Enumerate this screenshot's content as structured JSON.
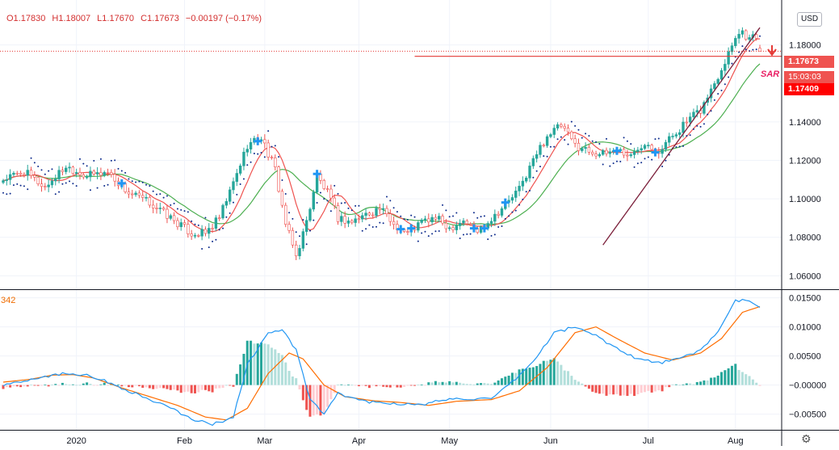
{
  "header": {
    "open_label": "O1.17830",
    "high_label": "H1.18007",
    "low_label": "L1.17670",
    "close_label": "C1.17673",
    "change_label": "−0.00197 (−0.17%)",
    "currency": "USD"
  },
  "markers": {
    "last_price": "1.17673",
    "countdown": "15:03:03",
    "level_price": "1.17409",
    "sar_label": "SAR",
    "indicator_value": "342"
  },
  "colors": {
    "up": "#26a69a",
    "down": "#ef5350",
    "ma_fast": "#ef5350",
    "ma_slow": "#4caf50",
    "sar": "#0d2b8c",
    "macd_line": "#2196f3",
    "signal_line": "#ff6d00",
    "hist_up_strong": "#26a69a",
    "hist_up_weak": "#b2dfdb",
    "hist_down_strong": "#ef5350",
    "hist_down_weak": "#ffcdd2",
    "trendline": "#7b1f3a",
    "level": "#e53935",
    "axis_text": "#131722",
    "grid": "#f0f3fa"
  },
  "icons": {
    "settings": "gear-icon"
  },
  "chart_data": [
    {
      "type": "candlestick",
      "symbol_hint": "EUR/USD daily",
      "x_ticks": [
        "2020",
        "Feb",
        "Mar",
        "Apr",
        "May",
        "Jun",
        "Jul",
        "Aug"
      ],
      "y_ticks": [
        "1.06000",
        "1.08000",
        "1.10000",
        "1.12000",
        "1.14000",
        "1.18000"
      ],
      "ylim": [
        1.053,
        1.2
      ],
      "anchors": [
        [
          0,
          1.11
        ],
        [
          6,
          1.114
        ],
        [
          12,
          1.106
        ],
        [
          18,
          1.117
        ],
        [
          24,
          1.112
        ],
        [
          30,
          1.114
        ],
        [
          36,
          1.103
        ],
        [
          42,
          1.098
        ],
        [
          48,
          1.09
        ],
        [
          54,
          1.082
        ],
        [
          58,
          1.082
        ],
        [
          62,
          1.09
        ],
        [
          66,
          1.108
        ],
        [
          70,
          1.128
        ],
        [
          74,
          1.132
        ],
        [
          78,
          1.115
        ],
        [
          81,
          1.087
        ],
        [
          84,
          1.07
        ],
        [
          87,
          1.088
        ],
        [
          90,
          1.112
        ],
        [
          93,
          1.103
        ],
        [
          96,
          1.09
        ],
        [
          100,
          1.088
        ],
        [
          104,
          1.092
        ],
        [
          108,
          1.095
        ],
        [
          112,
          1.087
        ],
        [
          116,
          1.082
        ],
        [
          120,
          1.088
        ],
        [
          124,
          1.09
        ],
        [
          128,
          1.085
        ],
        [
          132,
          1.089
        ],
        [
          136,
          1.083
        ],
        [
          140,
          1.09
        ],
        [
          144,
          1.097
        ],
        [
          148,
          1.105
        ],
        [
          152,
          1.12
        ],
        [
          156,
          1.133
        ],
        [
          160,
          1.138
        ],
        [
          164,
          1.128
        ],
        [
          168,
          1.125
        ],
        [
          172,
          1.123
        ],
        [
          176,
          1.126
        ],
        [
          180,
          1.122
        ],
        [
          184,
          1.13
        ],
        [
          188,
          1.125
        ],
        [
          192,
          1.133
        ],
        [
          196,
          1.14
        ],
        [
          200,
          1.146
        ],
        [
          204,
          1.16
        ],
        [
          207,
          1.172
        ],
        [
          210,
          1.185
        ],
        [
          212,
          1.187
        ],
        [
          214,
          1.183
        ],
        [
          216,
          1.185
        ],
        [
          217,
          1.1767
        ]
      ],
      "series": [
        {
          "name": "",
          "kind": "moving-average-fast",
          "lag": 4
        },
        {
          "name": "",
          "kind": "moving-average-slow",
          "lag": 9
        },
        {
          "name": "",
          "kind": "parabolic-sar"
        }
      ],
      "horizontal_levels": [
        {
          "value": 1.17409,
          "kind": "solid"
        },
        {
          "value": 1.17673,
          "kind": "dotted"
        }
      ],
      "trendline": {
        "from": [
          172,
          1.076
        ],
        "to": [
          217,
          1.189
        ]
      },
      "buy_markers": [
        34,
        73,
        90,
        114,
        117,
        135,
        138,
        144,
        176,
        187
      ]
    },
    {
      "type": "macd",
      "y_ticks": [
        "0.01500",
        "0.01000",
        "0.00500",
        "−0.00000",
        "−0.00500"
      ],
      "ylim": [
        -0.0077,
        0.0162
      ],
      "macd_anchors": [
        [
          0,
          0.0
        ],
        [
          6,
          0.0008
        ],
        [
          12,
          0.0015
        ],
        [
          18,
          0.002
        ],
        [
          24,
          0.0018
        ],
        [
          30,
          0.0005
        ],
        [
          36,
          -0.001
        ],
        [
          42,
          -0.0025
        ],
        [
          48,
          -0.004
        ],
        [
          54,
          -0.0058
        ],
        [
          60,
          -0.0068
        ],
        [
          66,
          -0.0055
        ],
        [
          70,
          0.0035
        ],
        [
          76,
          0.009
        ],
        [
          80,
          0.0095
        ],
        [
          84,
          0.006
        ],
        [
          88,
          -0.0025
        ],
        [
          92,
          -0.005
        ],
        [
          96,
          -0.0015
        ],
        [
          100,
          -0.0022
        ],
        [
          106,
          -0.003
        ],
        [
          114,
          -0.0032
        ],
        [
          120,
          -0.0035
        ],
        [
          126,
          -0.0025
        ],
        [
          132,
          -0.0023
        ],
        [
          140,
          -0.0025
        ],
        [
          146,
          0.0005
        ],
        [
          152,
          0.004
        ],
        [
          158,
          0.009
        ],
        [
          164,
          0.01
        ],
        [
          170,
          0.0085
        ],
        [
          176,
          0.0063
        ],
        [
          182,
          0.0045
        ],
        [
          188,
          0.0038
        ],
        [
          194,
          0.0045
        ],
        [
          200,
          0.006
        ],
        [
          206,
          0.01
        ],
        [
          210,
          0.0145
        ],
        [
          214,
          0.0145
        ],
        [
          217,
          0.0135
        ]
      ],
      "signal_anchors": [
        [
          0,
          0.0005
        ],
        [
          8,
          0.001
        ],
        [
          14,
          0.0017
        ],
        [
          20,
          0.0018
        ],
        [
          26,
          0.0012
        ],
        [
          34,
          -0.0005
        ],
        [
          42,
          -0.002
        ],
        [
          50,
          -0.0035
        ],
        [
          58,
          -0.0055
        ],
        [
          64,
          -0.006
        ],
        [
          70,
          -0.004
        ],
        [
          76,
          0.002
        ],
        [
          82,
          0.0055
        ],
        [
          86,
          0.0045
        ],
        [
          92,
          0.0
        ],
        [
          98,
          -0.002
        ],
        [
          106,
          -0.0027
        ],
        [
          114,
          -0.003
        ],
        [
          122,
          -0.0035
        ],
        [
          130,
          -0.0028
        ],
        [
          140,
          -0.0025
        ],
        [
          148,
          -0.001
        ],
        [
          156,
          0.003
        ],
        [
          164,
          0.009
        ],
        [
          170,
          0.01
        ],
        [
          176,
          0.008
        ],
        [
          184,
          0.0055
        ],
        [
          192,
          0.0043
        ],
        [
          200,
          0.0055
        ],
        [
          206,
          0.008
        ],
        [
          212,
          0.0125
        ],
        [
          217,
          0.0135
        ]
      ]
    }
  ]
}
